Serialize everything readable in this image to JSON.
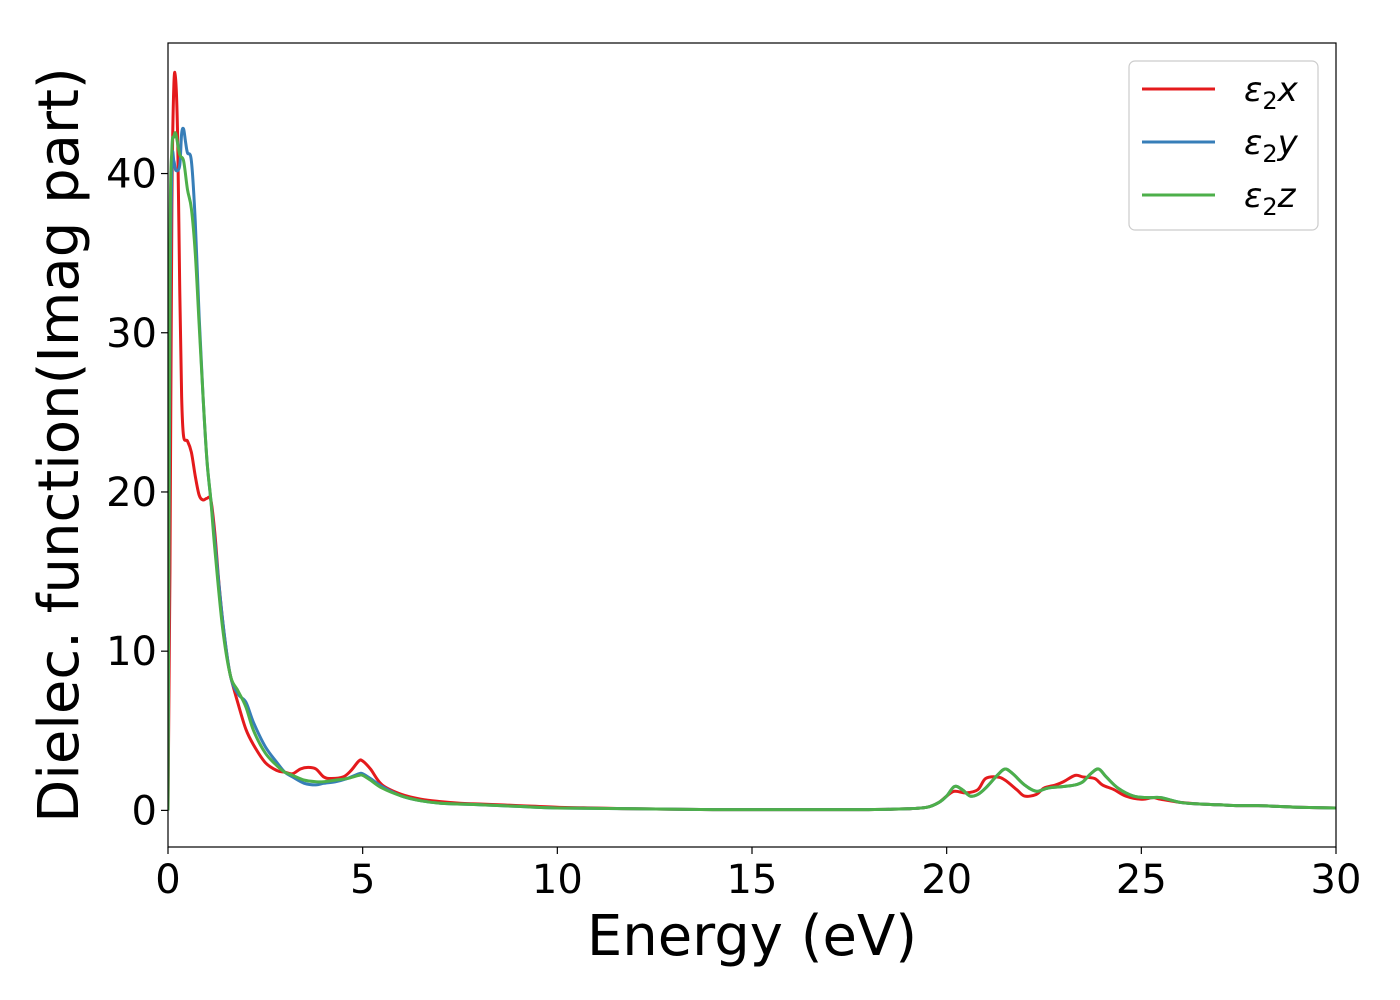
{
  "chart_data": {
    "type": "line",
    "title": "",
    "xlabel": "Energy (eV)",
    "ylabel": "Dielec. function(Imag part)",
    "xlim": [
      0,
      30
    ],
    "ylim": [
      -2.3,
      48.2
    ],
    "xticks": [
      0,
      5,
      10,
      15,
      20,
      25,
      30
    ],
    "yticks": [
      0,
      10,
      20,
      30,
      40
    ],
    "grid": false,
    "legend_position": "top-right",
    "series": [
      {
        "name": "ε2x",
        "color": "#e41a1c",
        "x": [
          0,
          0.05,
          0.1,
          0.15,
          0.2,
          0.25,
          0.3,
          0.35,
          0.4,
          0.5,
          0.6,
          0.7,
          0.8,
          0.9,
          1.0,
          1.1,
          1.2,
          1.3,
          1.4,
          1.5,
          1.6,
          1.8,
          2.0,
          2.2,
          2.5,
          2.8,
          3.0,
          3.2,
          3.4,
          3.6,
          3.8,
          4.0,
          4.2,
          4.5,
          4.7,
          4.9,
          5.0,
          5.2,
          5.5,
          6.0,
          6.5,
          7.0,
          7.5,
          8.0,
          9.0,
          10.0,
          11.0,
          12.0,
          14.0,
          16.0,
          18.0,
          19.0,
          19.5,
          19.8,
          20.0,
          20.2,
          20.5,
          20.8,
          21.0,
          21.3,
          21.5,
          21.8,
          22.0,
          22.3,
          22.5,
          22.8,
          23.0,
          23.3,
          23.5,
          23.8,
          24.0,
          24.3,
          24.6,
          25.0,
          25.3,
          25.5,
          26.0,
          26.5,
          27.0,
          27.5,
          28.0,
          28.5,
          29.0,
          30.0
        ],
        "y": [
          0,
          15,
          38,
          45.5,
          45.8,
          42,
          33,
          26,
          23.5,
          23.2,
          22.5,
          21,
          19.8,
          19.5,
          19.6,
          19.5,
          17.5,
          14.5,
          12,
          10,
          8.5,
          6.7,
          5.1,
          4.1,
          3.0,
          2.5,
          2.4,
          2.3,
          2.6,
          2.7,
          2.6,
          2.1,
          2.0,
          2.1,
          2.5,
          3.1,
          3.1,
          2.6,
          1.6,
          1.0,
          0.7,
          0.55,
          0.45,
          0.4,
          0.3,
          0.2,
          0.15,
          0.1,
          0.05,
          0.05,
          0.05,
          0.1,
          0.2,
          0.5,
          0.9,
          1.2,
          1.1,
          1.3,
          2.0,
          2.1,
          1.9,
          1.3,
          0.9,
          1.0,
          1.4,
          1.6,
          1.8,
          2.2,
          2.1,
          2.0,
          1.6,
          1.3,
          0.9,
          0.7,
          0.8,
          0.7,
          0.5,
          0.4,
          0.35,
          0.3,
          0.3,
          0.25,
          0.2,
          0.15
        ]
      },
      {
        "name": "ε2y",
        "color": "#377eb8",
        "x": [
          0,
          0.05,
          0.1,
          0.15,
          0.2,
          0.3,
          0.35,
          0.4,
          0.45,
          0.5,
          0.6,
          0.7,
          0.8,
          0.9,
          1.0,
          1.1,
          1.2,
          1.4,
          1.6,
          1.8,
          2.0,
          2.2,
          2.5,
          2.8,
          3.0,
          3.2,
          3.5,
          3.8,
          4.0,
          4.3,
          4.6,
          4.9,
          5.0,
          5.2,
          5.5,
          6.0,
          6.5,
          7.0,
          8.0,
          9.0,
          10.0,
          12.0,
          14.0,
          16.0,
          18.0,
          19.0,
          19.5,
          19.8,
          20.0,
          20.2,
          20.4,
          20.6,
          20.8,
          21.0,
          21.3,
          21.5,
          21.7,
          22.0,
          22.3,
          22.6,
          23.0,
          23.3,
          23.5,
          23.7,
          23.9,
          24.1,
          24.4,
          24.8,
          25.2,
          25.5,
          26.0,
          26.5,
          27.0,
          27.5,
          28.0,
          28.5,
          29.0,
          30.0
        ],
        "y": [
          0,
          30,
          40.5,
          40.8,
          40.2,
          40.5,
          42.5,
          42.8,
          42,
          41.3,
          40.8,
          37,
          31,
          26,
          22,
          19.5,
          17,
          12,
          8.5,
          7.3,
          6.8,
          5.5,
          4.0,
          3.0,
          2.4,
          2.1,
          1.7,
          1.6,
          1.7,
          1.8,
          2.0,
          2.3,
          2.3,
          2.0,
          1.5,
          0.9,
          0.6,
          0.45,
          0.35,
          0.25,
          0.15,
          0.1,
          0.05,
          0.05,
          0.05,
          0.1,
          0.2,
          0.5,
          0.9,
          1.5,
          1.3,
          0.9,
          1.0,
          1.4,
          2.2,
          2.6,
          2.3,
          1.6,
          1.2,
          1.4,
          1.5,
          1.6,
          1.8,
          2.3,
          2.6,
          2.1,
          1.4,
          0.9,
          0.8,
          0.8,
          0.5,
          0.4,
          0.35,
          0.3,
          0.3,
          0.25,
          0.2,
          0.15
        ]
      },
      {
        "name": "ε2z",
        "color": "#4daf4a",
        "x": [
          0,
          0.05,
          0.1,
          0.15,
          0.2,
          0.3,
          0.4,
          0.5,
          0.6,
          0.7,
          0.8,
          0.9,
          1.0,
          1.1,
          1.2,
          1.4,
          1.6,
          1.8,
          2.0,
          2.2,
          2.5,
          2.8,
          3.0,
          3.2,
          3.5,
          3.8,
          4.0,
          4.3,
          4.6,
          4.9,
          5.0,
          5.2,
          5.5,
          6.0,
          6.5,
          7.0,
          8.0,
          9.0,
          10.0,
          12.0,
          14.0,
          16.0,
          18.0,
          19.0,
          19.5,
          19.8,
          20.0,
          20.2,
          20.4,
          20.6,
          20.8,
          21.0,
          21.3,
          21.5,
          21.7,
          22.0,
          22.3,
          22.6,
          23.0,
          23.3,
          23.5,
          23.7,
          23.9,
          24.1,
          24.4,
          24.8,
          25.2,
          25.5,
          26.0,
          26.5,
          27.0,
          27.5,
          28.0,
          28.5,
          29.0,
          30.0
        ],
        "y": [
          0,
          35,
          41.5,
          42.3,
          42.5,
          41.2,
          40.8,
          39,
          37.8,
          35,
          30.5,
          26,
          22,
          19.5,
          16.5,
          11.5,
          8.5,
          7.5,
          6.5,
          5.0,
          3.6,
          2.8,
          2.4,
          2.2,
          1.9,
          1.8,
          1.8,
          1.9,
          2.0,
          2.2,
          2.2,
          1.9,
          1.4,
          0.9,
          0.6,
          0.45,
          0.35,
          0.25,
          0.15,
          0.1,
          0.05,
          0.05,
          0.05,
          0.1,
          0.2,
          0.5,
          0.9,
          1.5,
          1.3,
          0.9,
          1.0,
          1.4,
          2.2,
          2.6,
          2.3,
          1.6,
          1.2,
          1.4,
          1.5,
          1.6,
          1.8,
          2.3,
          2.6,
          2.1,
          1.4,
          0.9,
          0.8,
          0.8,
          0.5,
          0.4,
          0.35,
          0.3,
          0.3,
          0.25,
          0.2,
          0.15
        ]
      }
    ]
  }
}
